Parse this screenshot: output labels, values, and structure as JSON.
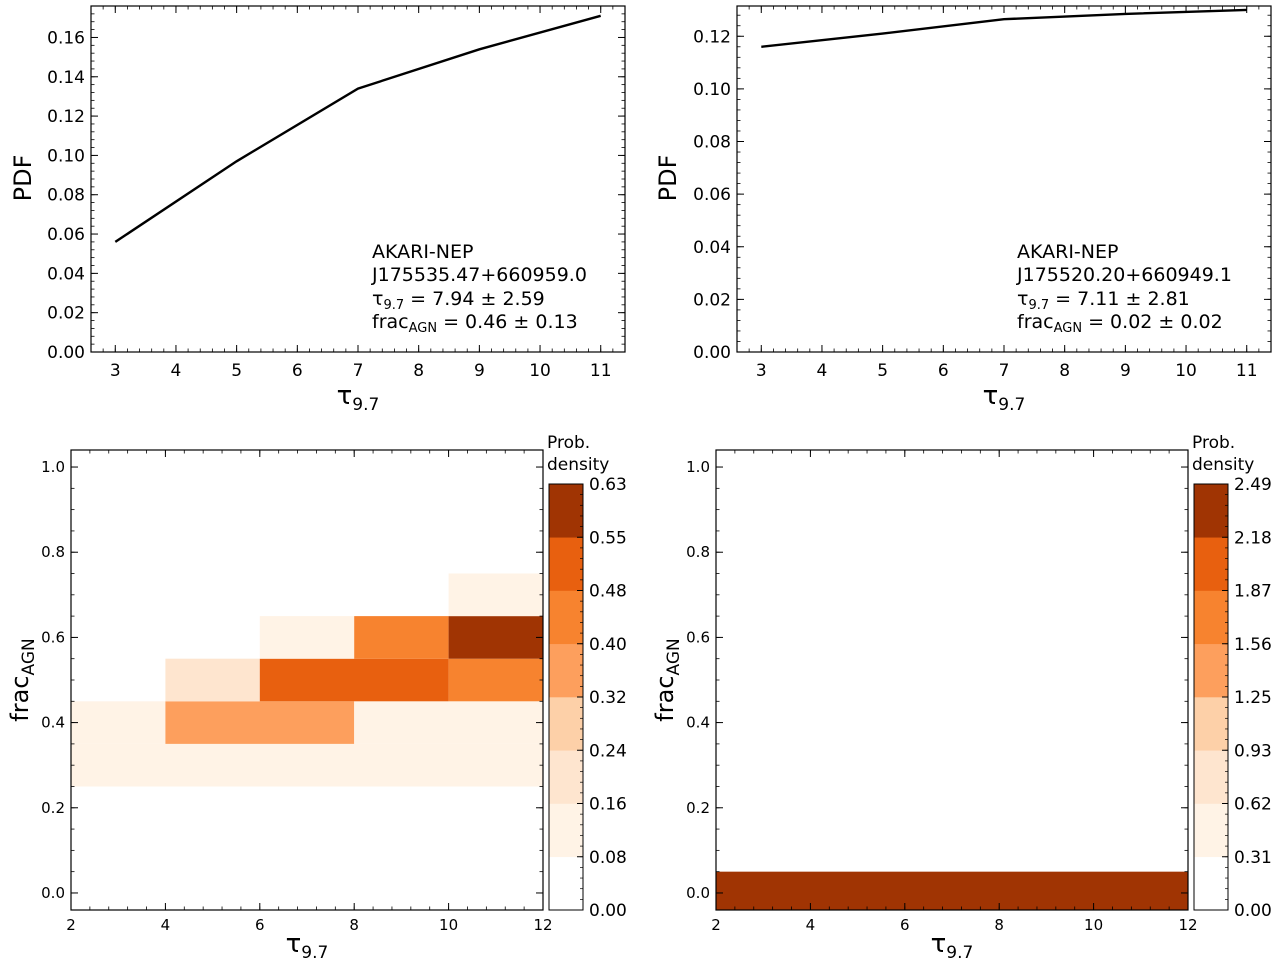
{
  "chart_data": [
    {
      "type": "line",
      "xlabel": "τ9.7",
      "ylabel": "PDF",
      "x": [
        3,
        5,
        7,
        9,
        11
      ],
      "y": [
        0.056,
        0.097,
        0.134,
        0.154,
        0.171
      ],
      "xlim": [
        2.6,
        11.4
      ],
      "ylim": [
        0.0,
        0.176
      ],
      "xticks": [
        "3",
        "4",
        "5",
        "6",
        "7",
        "8",
        "9",
        "10",
        "11"
      ],
      "yticks": [
        "0.00",
        "0.02",
        "0.04",
        "0.06",
        "0.08",
        "0.10",
        "0.12",
        "0.14",
        "0.16"
      ],
      "annotation": {
        "line1": "AKARI-NEP",
        "line2": "J175535.47+660959.0",
        "tau": "τ9.7 = 7.94 ± 2.59",
        "frac": "fracAGN = 0.46 ± 0.13"
      },
      "line_color": "#000000"
    },
    {
      "type": "line",
      "xlabel": "τ9.7",
      "ylabel": "PDF",
      "x": [
        3,
        5,
        7,
        9,
        11
      ],
      "y": [
        0.116,
        0.121,
        0.1265,
        0.1285,
        0.13
      ],
      "xlim": [
        2.6,
        11.4
      ],
      "ylim": [
        0.0,
        0.1315
      ],
      "xticks": [
        "3",
        "4",
        "5",
        "6",
        "7",
        "8",
        "9",
        "10",
        "11"
      ],
      "yticks": [
        "0.00",
        "0.02",
        "0.04",
        "0.06",
        "0.08",
        "0.10",
        "0.12"
      ],
      "annotation": {
        "line1": "AKARI-NEP",
        "line2": "J175520.20+660949.1",
        "tau": "τ9.7 = 7.11 ± 2.81",
        "frac": "fracAGN = 0.02 ± 0.02"
      },
      "line_color": "#000000"
    },
    {
      "type": "heatmap",
      "xlabel": "τ9.7",
      "ylabel": "fracAGN",
      "xlim": [
        2,
        12
      ],
      "ylim": [
        -0.04,
        1.04
      ],
      "xticks": [
        "2",
        "4",
        "6",
        "8",
        "10",
        "12"
      ],
      "yticks": [
        "0.0",
        "0.2",
        "0.4",
        "0.6",
        "0.8",
        "1.0"
      ],
      "cells": [
        {
          "x0": 4,
          "x1": 6,
          "y0": 0.15,
          "y1": 0.25,
          "level": 1
        },
        {
          "x0": 2,
          "x1": 12,
          "y0": 0.25,
          "y1": 0.35,
          "level": 2
        },
        {
          "x0": 2,
          "x1": 4,
          "y0": 0.35,
          "y1": 0.45,
          "level": 2
        },
        {
          "x0": 4,
          "x1": 8,
          "y0": 0.35,
          "y1": 0.45,
          "level": 5
        },
        {
          "x0": 8,
          "x1": 12,
          "y0": 0.35,
          "y1": 0.45,
          "level": 2
        },
        {
          "x0": 4,
          "x1": 6,
          "y0": 0.45,
          "y1": 0.55,
          "level": 3
        },
        {
          "x0": 6,
          "x1": 10,
          "y0": 0.45,
          "y1": 0.55,
          "level": 7
        },
        {
          "x0": 10,
          "x1": 12,
          "y0": 0.45,
          "y1": 0.55,
          "level": 6
        },
        {
          "x0": 6,
          "x1": 8,
          "y0": 0.55,
          "y1": 0.65,
          "level": 2
        },
        {
          "x0": 8,
          "x1": 10,
          "y0": 0.55,
          "y1": 0.65,
          "level": 6
        },
        {
          "x0": 10,
          "x1": 12,
          "y0": 0.55,
          "y1": 0.65,
          "level": 8
        },
        {
          "x0": 10,
          "x1": 12,
          "y0": 0.65,
          "y1": 0.75,
          "level": 2
        }
      ],
      "colorbar": {
        "title_line1": "Prob.",
        "title_line2": "density",
        "ticks": [
          "0.00",
          "0.08",
          "0.16",
          "0.24",
          "0.32",
          "0.40",
          "0.48",
          "0.55",
          "0.63"
        ]
      }
    },
    {
      "type": "heatmap",
      "xlabel": "τ9.7",
      "ylabel": "fracAGN",
      "xlim": [
        2,
        12
      ],
      "ylim": [
        -0.04,
        1.04
      ],
      "xticks": [
        "2",
        "4",
        "6",
        "8",
        "10",
        "12"
      ],
      "yticks": [
        "0.0",
        "0.2",
        "0.4",
        "0.6",
        "0.8",
        "1.0"
      ],
      "cells": [
        {
          "x0": 2,
          "x1": 12,
          "y0": -0.04,
          "y1": 0.05,
          "level": 8
        }
      ],
      "colorbar": {
        "title_line1": "Prob.",
        "title_line2": "density",
        "ticks": [
          "0.00",
          "0.31",
          "0.62",
          "0.93",
          "1.25",
          "1.56",
          "1.87",
          "2.18",
          "2.49"
        ]
      }
    }
  ],
  "colormap": [
    "#ffffff",
    "#fff3e6",
    "#fee5cf",
    "#fdd0a8",
    "#fd9f5d",
    "#f7832f",
    "#e8600f",
    "#a03403"
  ]
}
